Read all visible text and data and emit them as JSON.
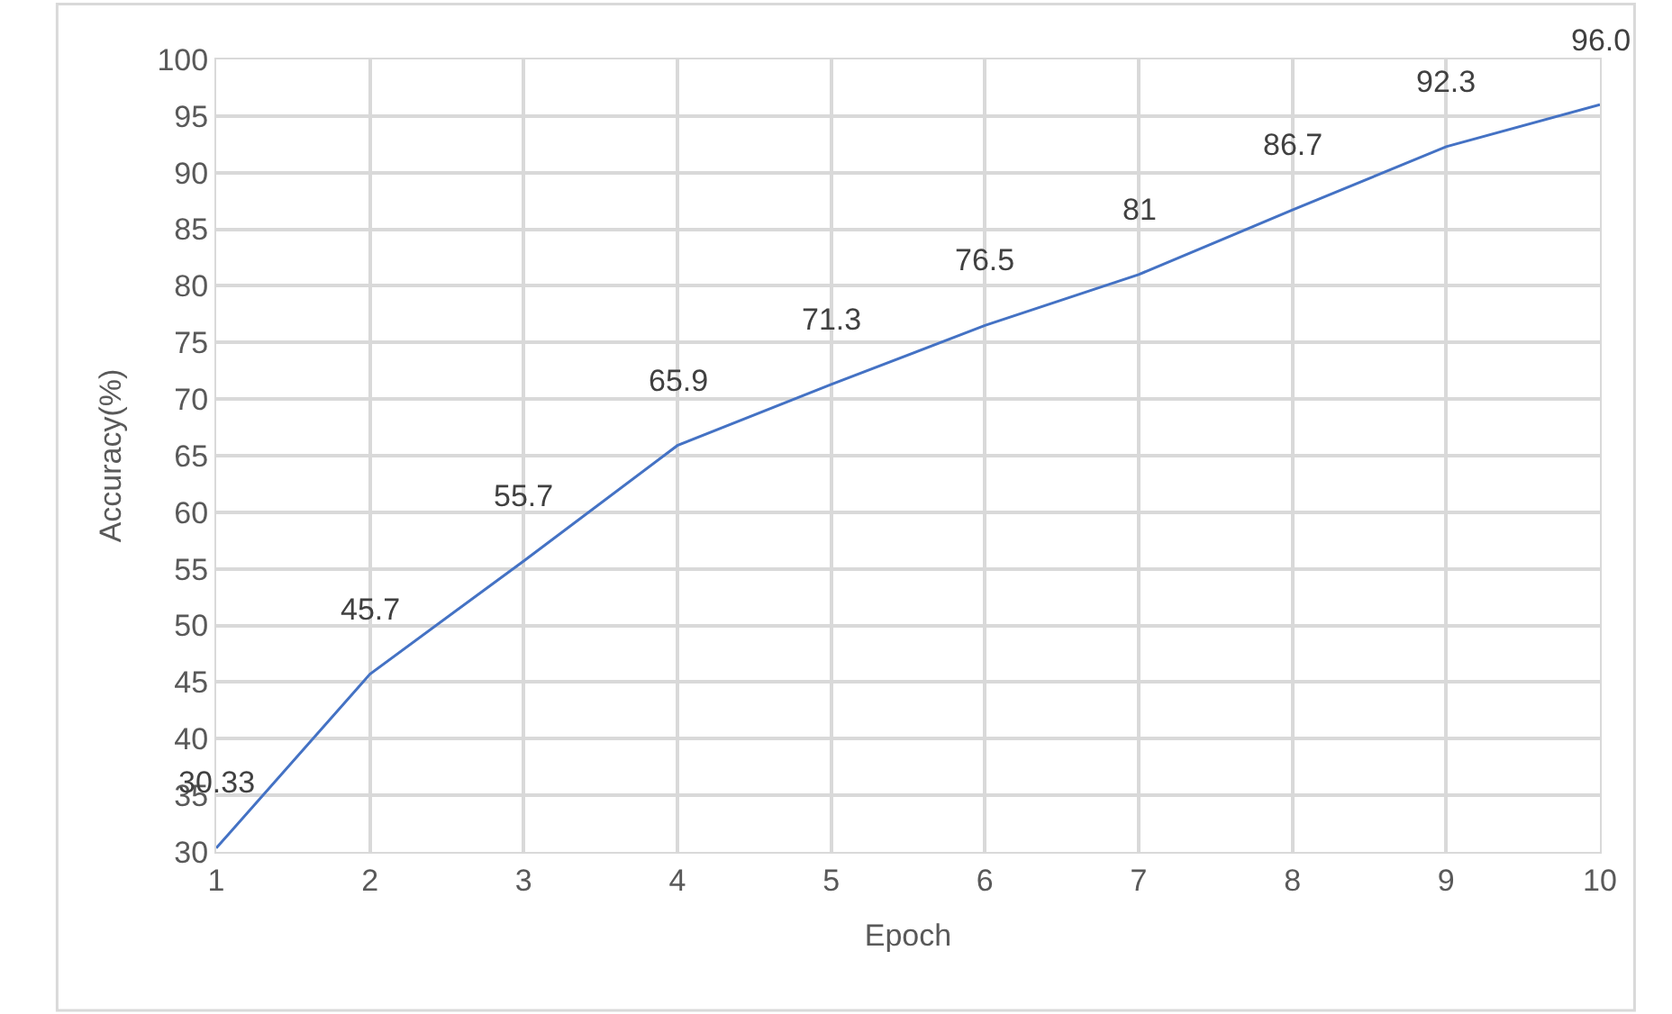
{
  "chart_data": {
    "type": "line",
    "xlabel": "Epoch",
    "ylabel": "Accuracy(%)",
    "x": [
      1,
      2,
      3,
      4,
      5,
      6,
      7,
      8,
      9,
      10
    ],
    "series": [
      {
        "color": "#4472c4",
        "values": [
          30.33,
          45.7,
          55.7,
          65.9,
          71.3,
          76.5,
          81,
          86.7,
          92.3,
          96.0
        ],
        "value_labels": [
          "30.33",
          "45.7",
          "55.7",
          "65.9",
          "71.3",
          "76.5",
          "81",
          "86.7",
          "92.3",
          "96.0"
        ]
      }
    ],
    "xlim": [
      1,
      10
    ],
    "xticks": [
      1,
      2,
      3,
      4,
      5,
      6,
      7,
      8,
      9,
      10
    ],
    "ylim": [
      30,
      100
    ],
    "yticks": [
      30,
      35,
      40,
      45,
      50,
      55,
      60,
      65,
      70,
      75,
      80,
      85,
      90,
      95,
      100
    ],
    "grid": true,
    "marker": "none",
    "line_style": "solid"
  }
}
